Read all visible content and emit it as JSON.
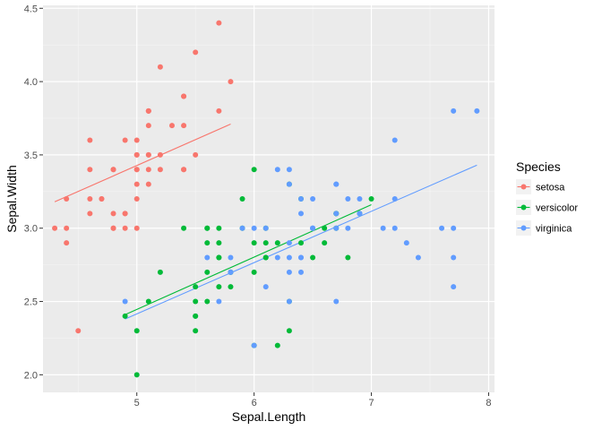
{
  "chart_data": {
    "type": "scatter",
    "title": "",
    "xlabel": "Sepal.Length",
    "ylabel": "Sepal.Width",
    "xlim": [
      4.2,
      8.05
    ],
    "ylim": [
      1.88,
      4.52
    ],
    "x_ticks": [
      5,
      6,
      7,
      8
    ],
    "y_ticks": [
      2.0,
      2.5,
      3.0,
      3.5,
      4.0,
      4.5
    ],
    "x_tick_labels": [
      "5",
      "6",
      "7",
      "8"
    ],
    "y_tick_labels": [
      "2.0",
      "2.5",
      "3.0",
      "3.5",
      "4.0",
      "4.5"
    ],
    "grid": true,
    "legend": {
      "title": "Species",
      "position": "right"
    },
    "series": [
      {
        "name": "setosa",
        "color": "#F8766D",
        "points": [
          [
            5.1,
            3.5
          ],
          [
            4.9,
            3.0
          ],
          [
            4.7,
            3.2
          ],
          [
            4.6,
            3.1
          ],
          [
            5.0,
            3.6
          ],
          [
            5.4,
            3.9
          ],
          [
            4.6,
            3.4
          ],
          [
            5.0,
            3.4
          ],
          [
            4.4,
            2.9
          ],
          [
            4.9,
            3.1
          ],
          [
            5.4,
            3.7
          ],
          [
            4.8,
            3.4
          ],
          [
            4.8,
            3.0
          ],
          [
            4.3,
            3.0
          ],
          [
            5.8,
            4.0
          ],
          [
            5.7,
            4.4
          ],
          [
            5.4,
            3.9
          ],
          [
            5.1,
            3.5
          ],
          [
            5.7,
            3.8
          ],
          [
            5.1,
            3.8
          ],
          [
            5.4,
            3.4
          ],
          [
            5.1,
            3.7
          ],
          [
            4.6,
            3.6
          ],
          [
            5.1,
            3.3
          ],
          [
            4.8,
            3.4
          ],
          [
            5.0,
            3.0
          ],
          [
            5.0,
            3.4
          ],
          [
            5.2,
            3.5
          ],
          [
            5.2,
            3.4
          ],
          [
            4.7,
            3.2
          ],
          [
            4.8,
            3.1
          ],
          [
            5.4,
            3.4
          ],
          [
            5.2,
            4.1
          ],
          [
            5.5,
            4.2
          ],
          [
            4.9,
            3.1
          ],
          [
            5.0,
            3.2
          ],
          [
            5.5,
            3.5
          ],
          [
            4.9,
            3.6
          ],
          [
            4.4,
            3.0
          ],
          [
            5.1,
            3.4
          ],
          [
            5.0,
            3.5
          ],
          [
            4.5,
            2.3
          ],
          [
            4.4,
            3.2
          ],
          [
            5.0,
            3.5
          ],
          [
            5.1,
            3.8
          ],
          [
            4.8,
            3.0
          ],
          [
            5.1,
            3.8
          ],
          [
            4.6,
            3.2
          ],
          [
            5.3,
            3.7
          ],
          [
            5.0,
            3.3
          ]
        ],
        "fit": [
          [
            4.3,
            3.18
          ],
          [
            5.8,
            3.71
          ]
        ]
      },
      {
        "name": "versicolor",
        "color": "#00BA38",
        "points": [
          [
            7.0,
            3.2
          ],
          [
            6.4,
            3.2
          ],
          [
            6.9,
            3.1
          ],
          [
            5.5,
            2.3
          ],
          [
            6.5,
            2.8
          ],
          [
            5.7,
            2.8
          ],
          [
            6.3,
            3.3
          ],
          [
            4.9,
            2.4
          ],
          [
            6.6,
            2.9
          ],
          [
            5.2,
            2.7
          ],
          [
            5.0,
            2.0
          ],
          [
            5.9,
            3.0
          ],
          [
            6.0,
            2.2
          ],
          [
            6.1,
            2.9
          ],
          [
            5.6,
            2.9
          ],
          [
            6.7,
            3.1
          ],
          [
            5.6,
            3.0
          ],
          [
            5.8,
            2.7
          ],
          [
            6.2,
            2.2
          ],
          [
            5.6,
            2.5
          ],
          [
            5.9,
            3.2
          ],
          [
            6.1,
            2.8
          ],
          [
            6.3,
            2.5
          ],
          [
            6.1,
            2.8
          ],
          [
            6.4,
            2.9
          ],
          [
            6.6,
            3.0
          ],
          [
            6.8,
            2.8
          ],
          [
            6.7,
            3.0
          ],
          [
            6.0,
            2.9
          ],
          [
            5.7,
            2.6
          ],
          [
            5.5,
            2.4
          ],
          [
            5.5,
            2.4
          ],
          [
            5.8,
            2.7
          ],
          [
            6.0,
            2.7
          ],
          [
            5.4,
            3.0
          ],
          [
            6.0,
            3.4
          ],
          [
            6.7,
            3.1
          ],
          [
            6.3,
            2.3
          ],
          [
            5.6,
            3.0
          ],
          [
            5.5,
            2.5
          ],
          [
            5.5,
            2.6
          ],
          [
            6.1,
            3.0
          ],
          [
            5.8,
            2.6
          ],
          [
            5.0,
            2.3
          ],
          [
            5.6,
            2.7
          ],
          [
            5.7,
            3.0
          ],
          [
            5.7,
            2.9
          ],
          [
            6.2,
            2.9
          ],
          [
            5.1,
            2.5
          ],
          [
            5.7,
            2.8
          ]
        ],
        "fit": [
          [
            4.9,
            2.41
          ],
          [
            7.0,
            3.16
          ]
        ]
      },
      {
        "name": "virginica",
        "color": "#619CFF",
        "points": [
          [
            6.3,
            3.3
          ],
          [
            5.8,
            2.7
          ],
          [
            7.1,
            3.0
          ],
          [
            6.3,
            2.9
          ],
          [
            6.5,
            3.0
          ],
          [
            7.6,
            3.0
          ],
          [
            4.9,
            2.5
          ],
          [
            7.3,
            2.9
          ],
          [
            6.7,
            2.5
          ],
          [
            7.2,
            3.6
          ],
          [
            6.5,
            3.2
          ],
          [
            6.4,
            2.7
          ],
          [
            6.8,
            3.0
          ],
          [
            5.7,
            2.5
          ],
          [
            5.8,
            2.8
          ],
          [
            6.4,
            3.2
          ],
          [
            6.5,
            3.0
          ],
          [
            7.7,
            3.8
          ],
          [
            7.7,
            2.6
          ],
          [
            6.0,
            2.2
          ],
          [
            6.9,
            3.2
          ],
          [
            5.6,
            2.8
          ],
          [
            7.7,
            2.8
          ],
          [
            6.3,
            2.7
          ],
          [
            6.7,
            3.3
          ],
          [
            7.2,
            3.2
          ],
          [
            6.2,
            2.8
          ],
          [
            6.1,
            3.0
          ],
          [
            6.4,
            2.8
          ],
          [
            7.2,
            3.0
          ],
          [
            7.4,
            2.8
          ],
          [
            7.9,
            3.8
          ],
          [
            6.4,
            2.8
          ],
          [
            6.3,
            2.8
          ],
          [
            6.1,
            2.6
          ],
          [
            7.7,
            3.0
          ],
          [
            6.3,
            3.4
          ],
          [
            6.4,
            3.1
          ],
          [
            6.0,
            3.0
          ],
          [
            6.9,
            3.1
          ],
          [
            6.7,
            3.1
          ],
          [
            6.9,
            3.1
          ],
          [
            5.8,
            2.7
          ],
          [
            6.8,
            3.2
          ],
          [
            6.7,
            3.3
          ],
          [
            6.7,
            3.0
          ],
          [
            6.3,
            2.5
          ],
          [
            6.5,
            3.0
          ],
          [
            6.2,
            3.4
          ],
          [
            5.9,
            3.0
          ]
        ],
        "fit": [
          [
            4.9,
            2.38
          ],
          [
            7.9,
            3.43
          ]
        ]
      }
    ]
  }
}
